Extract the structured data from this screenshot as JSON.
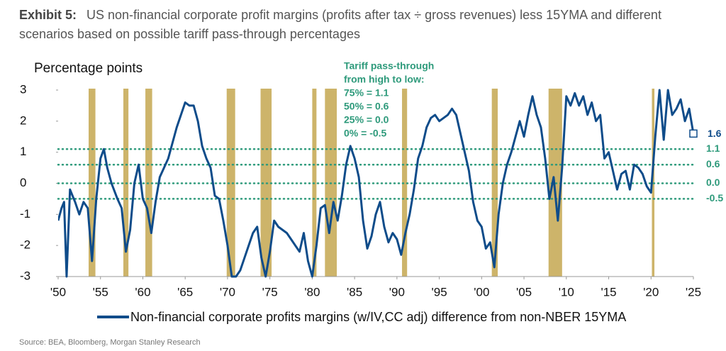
{
  "exhibit": "Exhibit 5:",
  "chart_data": {
    "type": "line",
    "title": "US non-financial corporate profit margins (profits after tax ÷ gross revenues) less 15YMA and different scenarios based on possible tariff pass-through percentages",
    "y_label": "Percentage points",
    "xlim": [
      1950,
      2025
    ],
    "xticks": [
      {
        "value": 1950,
        "label": "'50"
      },
      {
        "value": 1955,
        "label": "'55"
      },
      {
        "value": 1960,
        "label": "'60"
      },
      {
        "value": 1965,
        "label": "'65"
      },
      {
        "value": 1970,
        "label": "'70"
      },
      {
        "value": 1975,
        "label": "'75"
      },
      {
        "value": 1980,
        "label": "'80"
      },
      {
        "value": 1985,
        "label": "'85"
      },
      {
        "value": 1990,
        "label": "'90"
      },
      {
        "value": 1995,
        "label": "'95"
      },
      {
        "value": 2000,
        "label": "'00"
      },
      {
        "value": 2005,
        "label": "'05"
      },
      {
        "value": 2010,
        "label": "'10"
      },
      {
        "value": 2015,
        "label": "'15"
      },
      {
        "value": 2020,
        "label": "'20"
      },
      {
        "value": 2025,
        "label": "'25"
      }
    ],
    "ylim": [
      -3,
      3
    ],
    "yticks": [
      3,
      2,
      1,
      0,
      -1,
      -2,
      -3
    ],
    "recession_color": "#cdb46a",
    "recessions": [
      [
        1953.6,
        1954.4
      ],
      [
        1957.7,
        1958.3
      ],
      [
        1960.3,
        1961.1
      ],
      [
        1969.9,
        1970.9
      ],
      [
        1973.9,
        1975.2
      ],
      [
        1980.0,
        1980.5
      ],
      [
        1981.5,
        1982.9
      ],
      [
        1990.6,
        1991.2
      ],
      [
        2001.2,
        2001.9
      ],
      [
        2007.9,
        2009.5
      ],
      [
        2020.1,
        2020.4
      ]
    ],
    "annotation_title": [
      "Tariff pass-through",
      "from high to low:"
    ],
    "reference_color": "#2e9a7b",
    "reference_lines": [
      {
        "label": "75% = 1.1",
        "value": 1.1,
        "value_label": "1.1"
      },
      {
        "label": "50% = 0.6",
        "value": 0.6,
        "value_label": "0.6"
      },
      {
        "label": "25% = 0.0",
        "value": 0,
        "value_label": "0.0"
      },
      {
        "label": "0% = -0.5",
        "value": -0.5,
        "value_label": "-0.5"
      }
    ],
    "x": [
      1950.0,
      1950.4,
      1950.7,
      1951.0,
      1951.4,
      1952.0,
      1952.5,
      1953.0,
      1953.5,
      1954.0,
      1954.5,
      1955.0,
      1955.4,
      1955.8,
      1956.3,
      1957.0,
      1957.5,
      1958.0,
      1958.5,
      1959.0,
      1959.5,
      1960.0,
      1960.5,
      1961.0,
      1961.5,
      1962.0,
      1962.5,
      1963.0,
      1963.5,
      1964.0,
      1964.5,
      1965.0,
      1965.5,
      1966.0,
      1966.5,
      1967.0,
      1967.5,
      1968.0,
      1968.5,
      1969.0,
      1969.5,
      1970.0,
      1970.5,
      1971.0,
      1971.5,
      1972.0,
      1972.5,
      1973.0,
      1973.5,
      1974.0,
      1974.5,
      1975.0,
      1975.5,
      1976.0,
      1976.5,
      1977.0,
      1977.5,
      1978.0,
      1978.5,
      1979.0,
      1979.5,
      1980.0,
      1980.5,
      1981.0,
      1981.5,
      1982.0,
      1982.5,
      1983.0,
      1983.5,
      1984.0,
      1984.5,
      1985.0,
      1985.5,
      1986.0,
      1986.5,
      1987.0,
      1987.5,
      1988.0,
      1988.5,
      1989.0,
      1989.5,
      1990.0,
      1990.5,
      1991.0,
      1991.5,
      1992.0,
      1992.5,
      1993.0,
      1993.5,
      1994.0,
      1994.5,
      1995.0,
      1995.5,
      1996.0,
      1996.5,
      1997.0,
      1997.5,
      1998.0,
      1998.5,
      1999.0,
      1999.5,
      2000.0,
      2000.5,
      2001.0,
      2001.5,
      2002.0,
      2002.5,
      2003.0,
      2003.5,
      2004.0,
      2004.5,
      2005.0,
      2005.5,
      2006.0,
      2006.5,
      2007.0,
      2007.5,
      2008.0,
      2008.5,
      2009.0,
      2009.5,
      2010.0,
      2010.5,
      2011.0,
      2011.5,
      2012.0,
      2012.5,
      2013.0,
      2013.5,
      2014.0,
      2014.5,
      2015.0,
      2015.5,
      2016.0,
      2016.5,
      2017.0,
      2017.5,
      2018.0,
      2018.5,
      2019.0,
      2019.5,
      2020.0,
      2020.5,
      2021.0,
      2021.5,
      2022.0,
      2022.5,
      2023.0,
      2023.5,
      2024.0,
      2024.5,
      2025.0
    ],
    "series": [
      {
        "name": "Non-financial corporate profits margins (w/IV,CC adj) difference from non-NBER 15YMA",
        "color": "#0f4c8a",
        "values": [
          -1.2,
          -0.8,
          -0.6,
          -3.0,
          -0.2,
          -0.6,
          -1.0,
          -0.6,
          -0.8,
          -2.5,
          -0.5,
          0.8,
          1.1,
          0.5,
          0.0,
          -0.5,
          -0.8,
          -2.2,
          -1.5,
          0.0,
          0.6,
          -0.5,
          -0.8,
          -1.6,
          -0.6,
          0.2,
          0.5,
          0.8,
          1.3,
          1.8,
          2.2,
          2.6,
          2.5,
          2.5,
          2.0,
          1.2,
          0.8,
          0.5,
          -0.4,
          -0.5,
          -1.2,
          -2.0,
          -3.0,
          -3.0,
          -2.8,
          -2.4,
          -2.0,
          -1.6,
          -1.4,
          -2.4,
          -3.0,
          -2.2,
          -1.2,
          -1.4,
          -1.5,
          -1.6,
          -1.8,
          -2.0,
          -2.2,
          -1.6,
          -2.5,
          -3.0,
          -2.0,
          -0.8,
          -0.7,
          -1.6,
          -0.6,
          -1.2,
          -0.4,
          0.6,
          1.2,
          0.8,
          0.2,
          -1.2,
          -2.1,
          -1.7,
          -1.0,
          -0.6,
          -1.4,
          -1.9,
          -1.6,
          -1.8,
          -2.3,
          -1.6,
          -1.0,
          -0.2,
          0.8,
          1.2,
          1.8,
          2.1,
          2.2,
          2.0,
          2.1,
          2.2,
          2.4,
          2.2,
          1.6,
          1.0,
          0.4,
          -0.6,
          -1.2,
          -1.4,
          -2.1,
          -1.9,
          -2.7,
          -1.0,
          0.0,
          0.6,
          1.0,
          1.5,
          2.0,
          1.5,
          2.2,
          2.8,
          2.2,
          1.8,
          0.8,
          -0.5,
          0.2,
          -1.2,
          0.5,
          2.8,
          2.5,
          2.9,
          2.5,
          2.8,
          2.2,
          2.6,
          2.0,
          2.2,
          0.8,
          1.0,
          0.4,
          -0.2,
          0.3,
          0.4,
          -0.2,
          0.6,
          0.5,
          0.3,
          -0.1,
          -0.3,
          1.5,
          3.0,
          1.4,
          3.0,
          2.2,
          2.4,
          2.7,
          2.0,
          2.4,
          1.6
        ]
      }
    ],
    "end_label": "1.6",
    "source": "Source: BEA, Bloomberg, Morgan Stanley Research"
  }
}
